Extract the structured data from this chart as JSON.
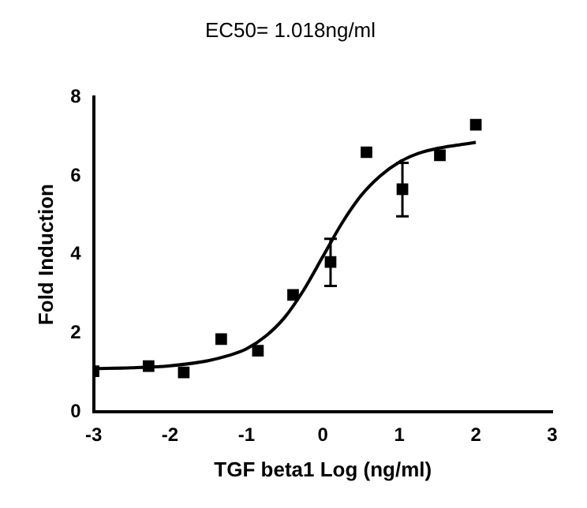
{
  "chart_data": {
    "type": "scatter",
    "title": "EC50= 1.018ng/ml",
    "xlabel": "TGF beta1 Log (ng/ml)",
    "ylabel": "Fold Induction",
    "xlim": [
      -3,
      3
    ],
    "xticks": [
      -3,
      -2,
      -1,
      0,
      1,
      2,
      3
    ],
    "ylim": [
      0,
      8
    ],
    "yticks": [
      0,
      2,
      4,
      6,
      8
    ],
    "grid": false,
    "legend": false,
    "series": [
      {
        "color": "#000000",
        "marker": "square",
        "x": [
          -3,
          -2.28,
          -1.82,
          -1.33,
          -0.85,
          -0.39,
          0.1,
          0.57,
          1.04,
          1.53,
          2.0
        ],
        "values": [
          1.03,
          1.16,
          1.0,
          1.85,
          1.55,
          2.97,
          3.81,
          6.6,
          5.66,
          6.52,
          7.3
        ],
        "errors": [
          null,
          null,
          null,
          null,
          null,
          null,
          [
            3.2,
            4.4
          ],
          null,
          [
            4.97,
            6.33
          ],
          null,
          null
        ]
      },
      {
        "type": "line",
        "color": "#000000",
        "marker": "none",
        "line_style": "solid",
        "x": [
          -3,
          -2.5,
          -2,
          -1.5,
          -1.25,
          -1,
          -0.75,
          -0.5,
          -0.25,
          0,
          0.25,
          0.5,
          0.75,
          1,
          1.25,
          1.5,
          1.75,
          2
        ],
        "values": [
          1.1,
          1.12,
          1.17,
          1.3,
          1.42,
          1.6,
          1.92,
          2.4,
          3.1,
          3.95,
          4.8,
          5.5,
          6.0,
          6.35,
          6.57,
          6.7,
          6.78,
          6.85
        ]
      }
    ]
  }
}
